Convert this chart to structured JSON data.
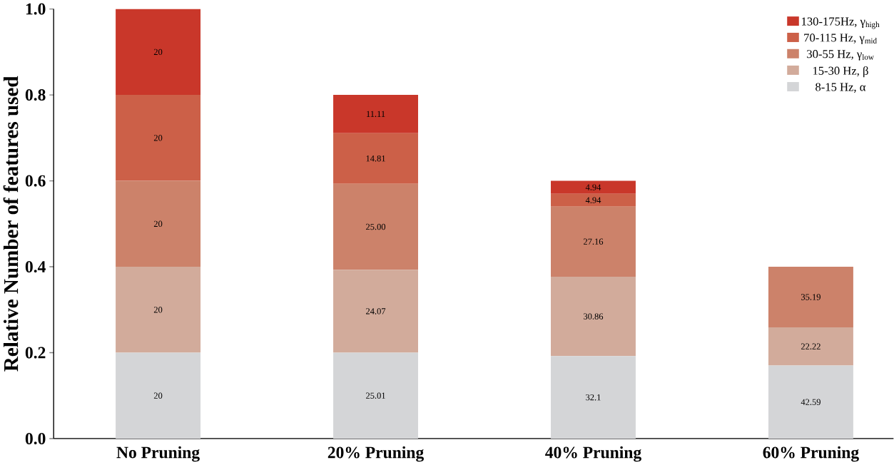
{
  "chart_data": {
    "type": "bar",
    "stacked": true,
    "ylabel": "Relative Number of features used",
    "categories": [
      "No Pruning",
      "20% Pruning",
      "40% Pruning",
      "60% Pruning"
    ],
    "series": [
      {
        "name": "8-15 Hz, α",
        "color": "#d4d5d7",
        "values": [
          0.2,
          0.2,
          0.192,
          0.17
        ]
      },
      {
        "name": "15-30 Hz, β",
        "color": "#d2ab9b",
        "values": [
          0.2,
          0.193,
          0.185,
          0.089
        ]
      },
      {
        "name": "30-55 Hz, γ$_{low}$",
        "color": "#cc826a",
        "values": [
          0.2,
          0.2,
          0.163,
          0.141
        ]
      },
      {
        "name": "70-115 Hz, γ$_{mid}$",
        "color": "#cc6048",
        "values": [
          0.2,
          0.118,
          0.03,
          null
        ]
      },
      {
        "name": "130-175Hz, γ$_{high}$",
        "color": "#c9372a",
        "values": [
          0.2,
          0.089,
          0.03,
          null
        ]
      }
    ],
    "annotations": [
      "20",
      "20",
      "20",
      "20",
      "20",
      "25.01",
      "24.07",
      "25.00",
      "14.81",
      "11.11",
      "32.1",
      "30.86",
      "27.16",
      "4.94",
      "4.94",
      "42.59",
      "22.22",
      "35.19"
    ],
    "ylim": [
      0,
      1.0
    ],
    "yticks": [
      {
        "value": 0,
        "label": "0.0"
      },
      {
        "value": 0.2,
        "label": "0.2"
      },
      {
        "value": 0.4,
        "label": "0.4"
      },
      {
        "value": 0.6,
        "label": "0.6"
      },
      {
        "value": 0.8,
        "label": "0.8"
      },
      {
        "value": 1.0,
        "label": "1.0"
      }
    ],
    "grid": false,
    "legend": "top right"
  }
}
